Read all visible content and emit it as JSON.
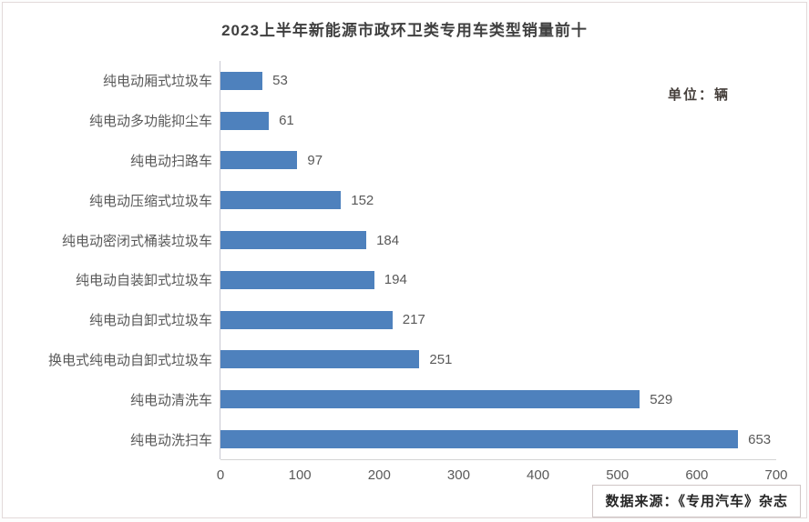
{
  "chart_data": {
    "type": "bar",
    "orientation": "horizontal",
    "title": "2023上半年新能源市政环卫类专用车类型销量前十",
    "unit_label": "单位：辆",
    "source": "数据来源：《专用汽车》杂志",
    "categories": [
      "纯电动厢式垃圾车",
      "纯电动多功能抑尘车",
      "纯电动扫路车",
      "纯电动压缩式垃圾车",
      "纯电动密闭式桶装垃圾车",
      "纯电动自装卸式垃圾车",
      "纯电动自卸式垃圾车",
      "换电式纯电动自卸式垃圾车",
      "纯电动清洗车",
      "纯电动洗扫车"
    ],
    "values": [
      53,
      61,
      97,
      152,
      184,
      194,
      217,
      251,
      529,
      653
    ],
    "xlabel": "",
    "ylabel": "",
    "xlim": [
      0,
      700
    ],
    "xticks": [
      0,
      100,
      200,
      300,
      400,
      500,
      600,
      700
    ],
    "grid": false,
    "legend": false,
    "bar_color": "#4e81bd",
    "value_labels_shown": true
  }
}
